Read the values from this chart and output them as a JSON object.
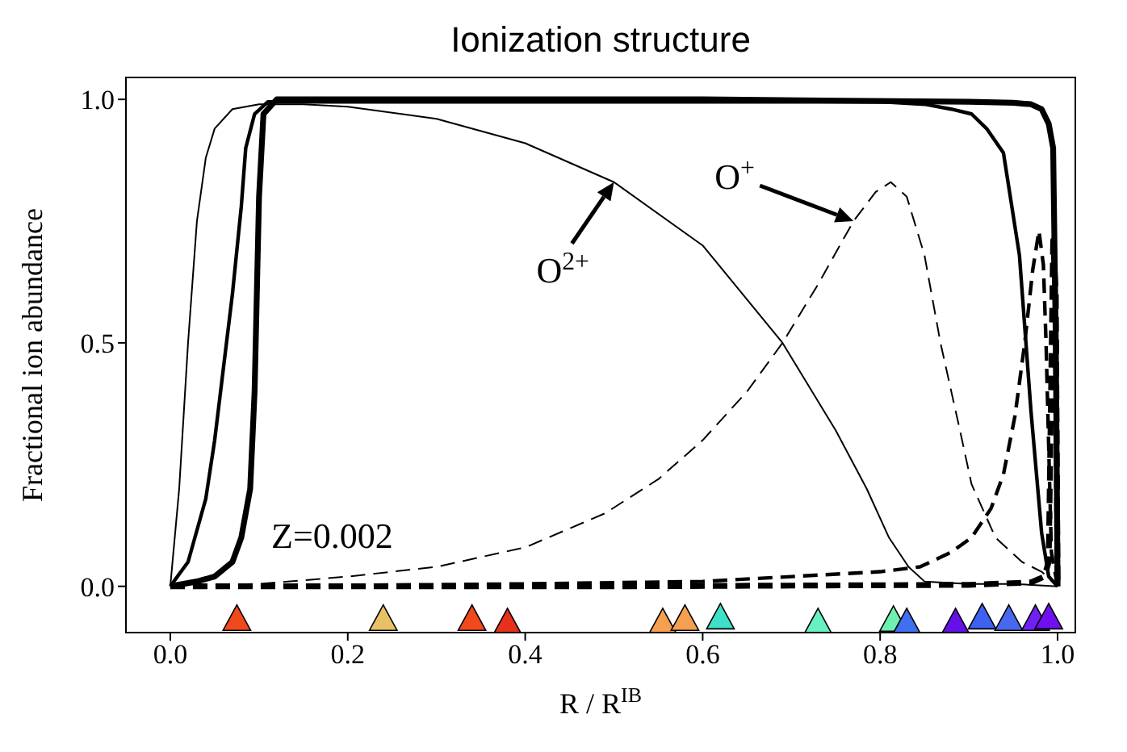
{
  "chart_data": {
    "type": "line",
    "title": "Ionization structure",
    "xlabel": "R / R$^{IB}$",
    "ylabel": "Fractional ion abundance",
    "xlim": [
      -0.05,
      1.02
    ],
    "ylim": [
      -0.095,
      1.045
    ],
    "xticks": [
      {
        "value": 0,
        "label": "0.0"
      },
      {
        "value": 0.2,
        "label": "0.2"
      },
      {
        "value": 0.4,
        "label": "0.4"
      },
      {
        "value": 0.6,
        "label": "0.6"
      },
      {
        "value": 0.8,
        "label": "0.8"
      },
      {
        "value": 1,
        "label": "1.0"
      }
    ],
    "yticks": [
      {
        "value": 0,
        "label": "0.0"
      },
      {
        "value": 0.5,
        "label": "0.5"
      },
      {
        "value": 1,
        "label": "1.0"
      }
    ],
    "grid": false,
    "marker": "none",
    "annotations": [
      {
        "text": "O$^{2+}$",
        "x": 0.5,
        "y": 0.83
      },
      {
        "text": "O$^{+}$",
        "x": 0.77,
        "y": 0.75
      },
      "Z=0.002"
    ],
    "series": [
      {
        "color": "#000000",
        "line_style": "solid",
        "x": [
          0,
          0.01,
          0.02,
          0.03,
          0.04,
          0.05,
          0.07,
          0.1,
          0.15,
          0.2,
          0.3,
          0.4,
          0.5,
          0.6,
          0.69,
          0.75,
          0.785,
          0.81,
          0.832,
          0.85,
          0.9,
          0.95,
          1.0
        ],
        "values": [
          0,
          0.2,
          0.5,
          0.75,
          0.88,
          0.94,
          0.98,
          0.99,
          0.99,
          0.985,
          0.96,
          0.91,
          0.83,
          0.7,
          0.5,
          0.32,
          0.2,
          0.1,
          0.04,
          0.01,
          0.005,
          0.005,
          0
        ]
      },
      {
        "color": "#000000",
        "line_style": "dashed",
        "x": [
          0,
          0.1,
          0.2,
          0.3,
          0.4,
          0.49,
          0.55,
          0.6,
          0.65,
          0.69,
          0.73,
          0.77,
          0.795,
          0.812,
          0.83,
          0.85,
          0.868,
          0.89,
          0.903,
          0.93,
          0.96,
          0.982,
          1.0
        ],
        "values": [
          0,
          0.005,
          0.02,
          0.04,
          0.08,
          0.15,
          0.22,
          0.3,
          0.4,
          0.5,
          0.62,
          0.75,
          0.81,
          0.83,
          0.8,
          0.68,
          0.5,
          0.32,
          0.21,
          0.1,
          0.05,
          0.03,
          0
        ]
      },
      {
        "color": "#000000",
        "line_style": "solid",
        "x": [
          0,
          0.02,
          0.04,
          0.05,
          0.06,
          0.07,
          0.08,
          0.085,
          0.095,
          0.11,
          0.15,
          0.3,
          0.5,
          0.7,
          0.8,
          0.85,
          0.88,
          0.903,
          0.92,
          0.939,
          0.957,
          0.97,
          0.982,
          0.99,
          1.0
        ],
        "values": [
          0,
          0.05,
          0.18,
          0.3,
          0.45,
          0.6,
          0.78,
          0.9,
          0.97,
          0.995,
          0.995,
          0.995,
          0.995,
          0.995,
          0.995,
          0.99,
          0.98,
          0.97,
          0.94,
          0.89,
          0.68,
          0.36,
          0.11,
          0.02,
          0
        ]
      },
      {
        "color": "#000000",
        "line_style": "dashed",
        "x": [
          0,
          0.2,
          0.4,
          0.6,
          0.7,
          0.8,
          0.845,
          0.88,
          0.903,
          0.925,
          0.939,
          0.952,
          0.963,
          0.972,
          0.979,
          0.984,
          0.987,
          0.993,
          1.0
        ],
        "values": [
          0,
          0.002,
          0.005,
          0.01,
          0.02,
          0.03,
          0.04,
          0.07,
          0.1,
          0.16,
          0.23,
          0.35,
          0.5,
          0.65,
          0.73,
          0.66,
          0.5,
          0.07,
          0
        ]
      },
      {
        "color": "#000000",
        "line_style": "solid",
        "x": [
          0,
          0.03,
          0.05,
          0.07,
          0.08,
          0.09,
          0.095,
          0.1,
          0.105,
          0.12,
          0.3,
          0.6,
          0.9,
          0.95,
          0.97,
          0.982,
          0.99,
          0.995,
          0.998,
          1.0
        ],
        "values": [
          0,
          0.01,
          0.02,
          0.05,
          0.1,
          0.2,
          0.4,
          0.8,
          0.97,
          1.0,
          1.0,
          1.0,
          0.995,
          0.993,
          0.99,
          0.98,
          0.95,
          0.9,
          0.5,
          0
        ]
      },
      {
        "color": "#000000",
        "line_style": "dashed",
        "x": [
          0,
          0.5,
          0.9,
          0.97,
          0.985,
          0.99,
          0.995,
          0.998,
          1.0
        ],
        "values": [
          0,
          0,
          0.003,
          0.008,
          0.02,
          0.05,
          0.71,
          0.6,
          0
        ]
      },
      {
        "type": "scatter",
        "marker": "triangle",
        "x": [
          0.075,
          0.24,
          0.34,
          0.38,
          0.555,
          0.58,
          0.62,
          0.73,
          0.815,
          0.83,
          0.885,
          0.915,
          0.945,
          0.975,
          0.99
        ],
        "values": [
          -0.068,
          -0.068,
          -0.068,
          -0.075,
          -0.075,
          -0.068,
          -0.065,
          -0.075,
          -0.07,
          -0.075,
          -0.075,
          -0.065,
          -0.068,
          -0.068,
          -0.065
        ],
        "colors": [
          "#f04a1c",
          "#e8c066",
          "#f04a1c",
          "#e8301c",
          "#f5a050",
          "#f5a050",
          "#3ee0c8",
          "#68f0c0",
          "#70f0b0",
          "#4070f0",
          "#6410e8",
          "#4060f0",
          "#4868f0",
          "#7020f0",
          "#7010f0"
        ]
      }
    ]
  }
}
